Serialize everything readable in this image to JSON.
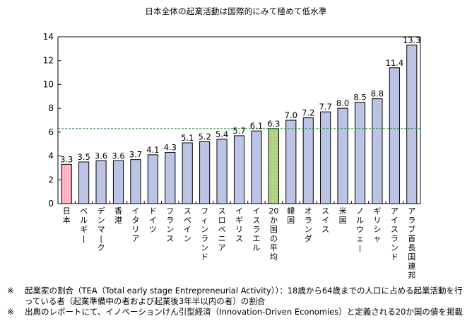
{
  "chart_data": {
    "type": "bar",
    "title": "日本全体の起業活動は国際的にみて極めて低水準",
    "xlabel": "",
    "ylabel": "",
    "ylim": [
      0,
      14
    ],
    "yticks": [
      0,
      2,
      4,
      6,
      8,
      10,
      12,
      14
    ],
    "grid": false,
    "categories": [
      "日本",
      "ベルギー",
      "デンマーク",
      "香港",
      "イタリア",
      "ドイツ",
      "フランス",
      "スペイン",
      "フィンランド",
      "スロベニア",
      "イギリス",
      "イスラエル",
      "20か国の平均",
      "韓国",
      "オランダ",
      "スイス",
      "米国",
      "ノルウェー",
      "ギリシャ",
      "アイスランド",
      "アラブ首長国連邦"
    ],
    "values": [
      3.3,
      3.5,
      3.6,
      3.6,
      3.7,
      4.1,
      4.3,
      5.1,
      5.2,
      5.4,
      5.7,
      6.1,
      6.3,
      7.0,
      7.2,
      7.7,
      8.0,
      8.5,
      8.8,
      11.4,
      13.3
    ],
    "value_labels": [
      "3.3",
      "3.5",
      "3.6",
      "3.6",
      "3.7",
      "4.1",
      "4.3",
      "5.1",
      "5.2",
      "5.4",
      "5.7",
      "6.1",
      "6.3",
      "7.0",
      "7.2",
      "7.7",
      "8.0",
      "8.5",
      "8.8",
      "11.4",
      "13.3"
    ],
    "highlight": {
      "日本": "#f4a9b8",
      "20か国の平均": "#b5d98a"
    },
    "bar_color": "#bcc4e6",
    "reference_line": {
      "value": 6.3,
      "label": "20か国の平均",
      "color": "#1a8a3a",
      "style": "dashed"
    }
  },
  "notes": [
    {
      "mark": "※",
      "text": "起業家の割合（TEA（Total early stage Entrepreneurial Activity））：18歳から64歳までの人口に占める起業活動を行っている者（起業準備中の者および起業後3年半以内の者）の割合"
    },
    {
      "mark": "※",
      "text": "出典のレポートにて、イノベーションけん引型経済（Innovation-Driven Economies）と定義される20か国の値を掲載"
    }
  ]
}
